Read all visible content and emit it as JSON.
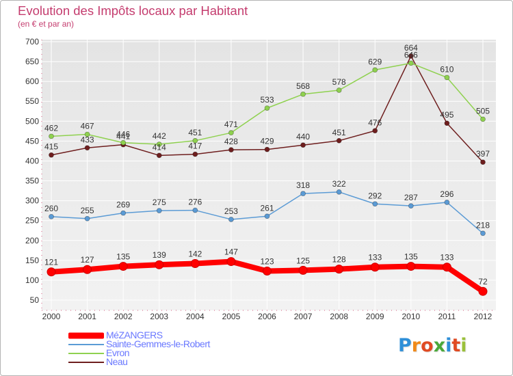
{
  "header": {
    "title": "Evolution des Impôts locaux par Habitant",
    "subtitle": "(en € et par an)"
  },
  "logo": {
    "letters": [
      "P",
      "r",
      "o",
      "x",
      "i",
      "t",
      "i"
    ],
    "colors": [
      "#2e8fd8",
      "#f08a1a",
      "#e04a22",
      "#4aa83a",
      "#2e8fd8",
      "#e04a22",
      "#9ac03a"
    ]
  },
  "chart_data": {
    "type": "line",
    "x": [
      "2000",
      "2001",
      "2002",
      "2003",
      "2004",
      "2005",
      "2006",
      "2007",
      "2008",
      "2009",
      "2010",
      "2011",
      "2012"
    ],
    "ylim": [
      50,
      700
    ],
    "yticks": [
      "50",
      "100",
      "150",
      "200",
      "250",
      "300",
      "350",
      "400",
      "450",
      "500",
      "550",
      "600",
      "650",
      "700"
    ],
    "grid": true,
    "legend_position": "bottom-left",
    "series": [
      {
        "name": "MéZANGERS",
        "color": "#ff0000",
        "values": [
          121,
          127,
          135,
          139,
          142,
          147,
          123,
          125,
          128,
          133,
          135,
          133,
          72
        ]
      },
      {
        "name": "Sainte-Gemmes-le-Robert",
        "color": "#5b9bd5",
        "values": [
          260,
          255,
          269,
          275,
          276,
          253,
          261,
          318,
          322,
          292,
          287,
          296,
          218
        ]
      },
      {
        "name": "Evron",
        "color": "#8fd14f",
        "values": [
          462,
          467,
          446,
          442,
          451,
          471,
          533,
          568,
          578,
          629,
          646,
          610,
          505
        ]
      },
      {
        "name": "Neau",
        "color": "#6e1e1e",
        "values": [
          415,
          433,
          441,
          414,
          417,
          428,
          429,
          440,
          451,
          476,
          664,
          495,
          397
        ]
      }
    ]
  }
}
